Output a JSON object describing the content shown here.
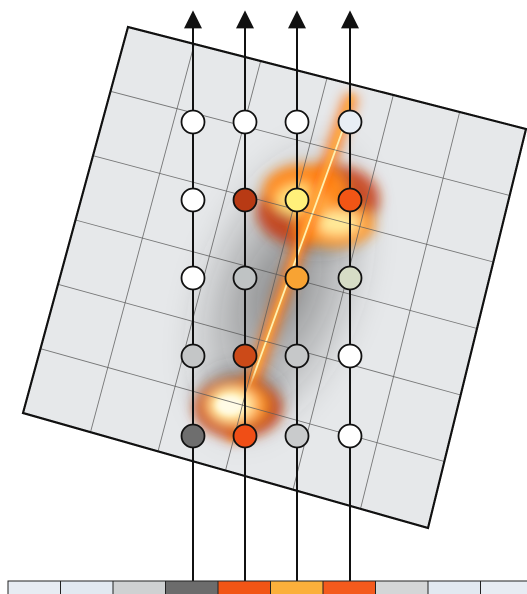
{
  "diagram": {
    "grid": {
      "rows": 6,
      "cols": 6
    },
    "colors": {
      "panel_fill": "#e6e8ea",
      "panel_stroke": "#111111",
      "grid_line": "#5a5a5a",
      "ray": "#111111",
      "jet_glow": "#ffd25a",
      "jet_core": "#fff6c8",
      "jet_mid": "#ff8a1a",
      "jet_edge": "#c52a06"
    },
    "rays": 4,
    "samples": [
      [
        "#ffffff",
        "#ffffff",
        "#ffffff",
        "#e8eef5"
      ],
      [
        "#ffffff",
        "#b83a14",
        "#fff07a",
        "#f25515"
      ],
      [
        "#ffffff",
        "#bfc3c4",
        "#f8a333",
        "#d6dcc6"
      ],
      [
        "#c4c6c7",
        "#cc4a18",
        "#c6c8c9",
        "#ffffff"
      ],
      [
        "#6e6e6e",
        "#f04e16",
        "#c9cbcc",
        "#ffffff"
      ]
    ],
    "output_strip": [
      "#e7ecf3",
      "#e2e9f1",
      "#cfd1d2",
      "#6c6c6c",
      "#f25515",
      "#fbb03b",
      "#f45a1d",
      "#d4d6d7",
      "#e2e9f1",
      "#e7ecf3"
    ]
  }
}
